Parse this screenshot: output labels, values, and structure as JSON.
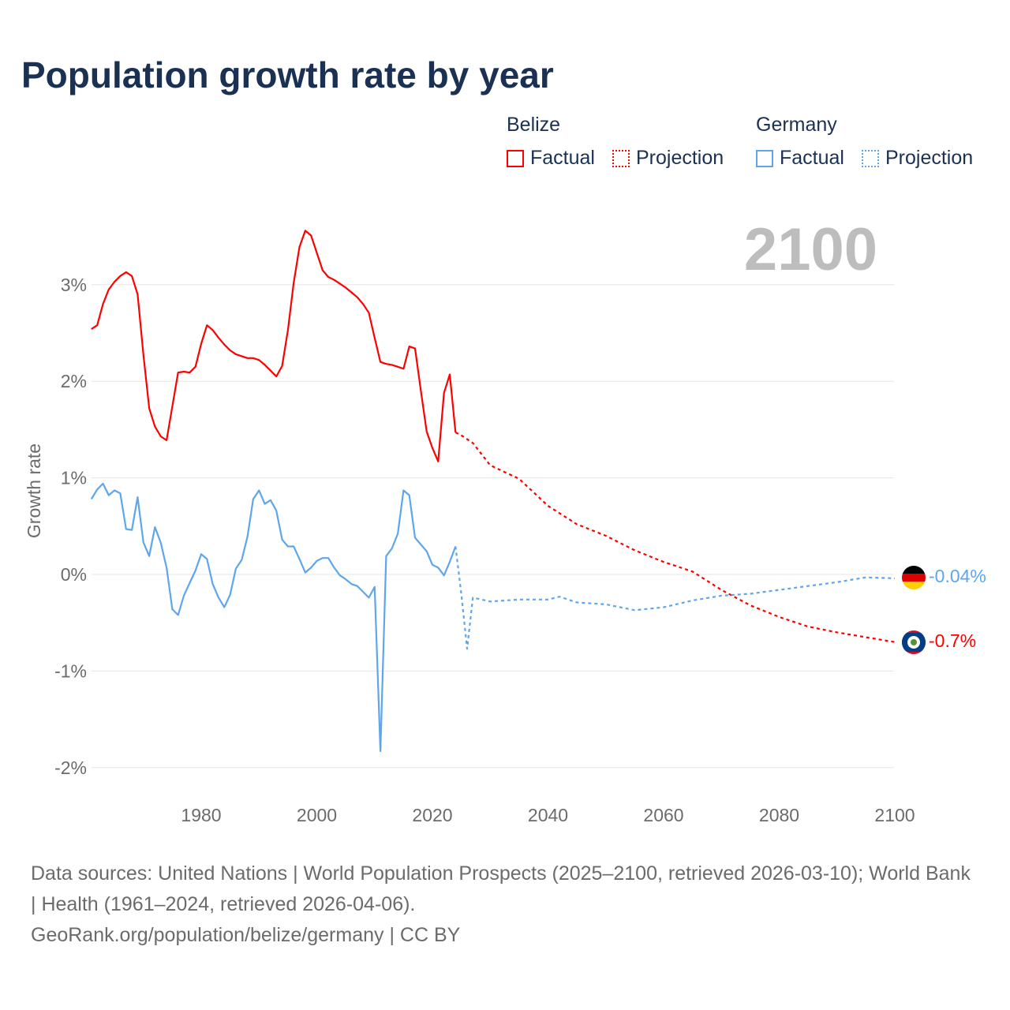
{
  "title": "Population growth rate by year",
  "legend": {
    "groups": [
      {
        "name": "Belize",
        "color": "#ff0000",
        "factual": "Factual",
        "projection": "Projection"
      },
      {
        "name": "Germany",
        "color": "#5ea6ec",
        "factual": "Factual",
        "projection": "Projection"
      }
    ]
  },
  "sources": {
    "line1": "Data sources: United Nations | World Population Prospects (2025–2100, retrieved 2026-03-10); World Bank | Health (1961–2024, retrieved 2026-04-06).",
    "line2": "GeoRank.org/population/belize/germany | CC BY"
  },
  "chart_data": {
    "type": "line",
    "title": "Population growth rate by year",
    "xlabel": "",
    "ylabel": "Growth rate",
    "xlim": [
      1961,
      2100
    ],
    "ylim": [
      -2.2,
      3.6
    ],
    "x_ticks": [
      1980,
      2000,
      2020,
      2040,
      2060,
      2080,
      2100
    ],
    "x_tick_labels": [
      "1980",
      "2000",
      "2020",
      "2040",
      "2060",
      "2080",
      "2100"
    ],
    "y_ticks": [
      3,
      2,
      1,
      0,
      -1,
      -2
    ],
    "y_tick_labels": [
      "3%",
      "2%",
      "1%",
      "0%",
      "-1%",
      "-2%"
    ],
    "grid": true,
    "year_label": "2100",
    "end_labels": {
      "Germany": "-0.04%",
      "Belize": "-0.7%"
    },
    "series": [
      {
        "name": "Belize Factual",
        "color": "#ff0000",
        "style": "solid",
        "x_start": 1961,
        "values": [
          2.54,
          2.58,
          2.8,
          2.95,
          3.03,
          3.09,
          3.13,
          3.09,
          2.9,
          2.27,
          1.72,
          1.53,
          1.43,
          1.39,
          1.74,
          2.09,
          2.1,
          2.09,
          2.15,
          2.39,
          2.58,
          2.53,
          2.45,
          2.38,
          2.32,
          2.28,
          2.26,
          2.24,
          2.24,
          2.22,
          2.17,
          2.11,
          2.05,
          2.16,
          2.53,
          3.02,
          3.39,
          3.56,
          3.51,
          3.33,
          3.15,
          3.08,
          3.05,
          3.01,
          2.97,
          2.92,
          2.87,
          2.8,
          2.71,
          2.45,
          2.2,
          2.18,
          2.17,
          2.15,
          2.13,
          2.36,
          2.34,
          1.9,
          1.48,
          1.31,
          1.17,
          1.88,
          2.07,
          1.47
        ]
      },
      {
        "name": "Belize Projection",
        "color": "#ff0000",
        "style": "dotted",
        "x": [
          2024,
          2025,
          2027,
          2030,
          2035,
          2040,
          2045,
          2050,
          2055,
          2060,
          2065,
          2070,
          2075,
          2080,
          2085,
          2090,
          2095,
          2100
        ],
        "values": [
          1.47,
          1.44,
          1.36,
          1.13,
          0.99,
          0.71,
          0.52,
          0.4,
          0.25,
          0.13,
          0.03,
          -0.16,
          -0.32,
          -0.44,
          -0.54,
          -0.6,
          -0.65,
          -0.7
        ]
      },
      {
        "name": "Germany Factual",
        "color": "#5ea6ec",
        "style": "solid",
        "x_start": 1961,
        "values": [
          0.78,
          0.88,
          0.94,
          0.82,
          0.87,
          0.84,
          0.47,
          0.46,
          0.8,
          0.33,
          0.19,
          0.49,
          0.33,
          0.07,
          -0.36,
          -0.42,
          -0.22,
          -0.09,
          0.04,
          0.21,
          0.16,
          -0.1,
          -0.24,
          -0.34,
          -0.21,
          0.06,
          0.15,
          0.39,
          0.78,
          0.87,
          0.73,
          0.77,
          0.66,
          0.36,
          0.29,
          0.29,
          0.16,
          0.02,
          0.07,
          0.14,
          0.17,
          0.17,
          0.07,
          -0.01,
          -0.05,
          -0.1,
          -0.12,
          -0.18,
          -0.24,
          -0.13,
          -1.83,
          0.19,
          0.27,
          0.42,
          0.87,
          0.82,
          0.38,
          0.31,
          0.24,
          0.1,
          0.07,
          -0.01,
          0.13,
          0.29
        ]
      },
      {
        "name": "Germany Projection",
        "color": "#5ea6ec",
        "style": "dotted",
        "x": [
          2024,
          2025,
          2026,
          2027,
          2030,
          2035,
          2040,
          2042,
          2045,
          2050,
          2055,
          2060,
          2065,
          2070,
          2075,
          2080,
          2085,
          2090,
          2095,
          2100
        ],
        "values": [
          0.29,
          -0.2,
          -0.77,
          -0.24,
          -0.28,
          -0.26,
          -0.26,
          -0.23,
          -0.29,
          -0.31,
          -0.37,
          -0.34,
          -0.27,
          -0.22,
          -0.2,
          -0.16,
          -0.12,
          -0.08,
          -0.03,
          -0.04
        ]
      }
    ]
  }
}
